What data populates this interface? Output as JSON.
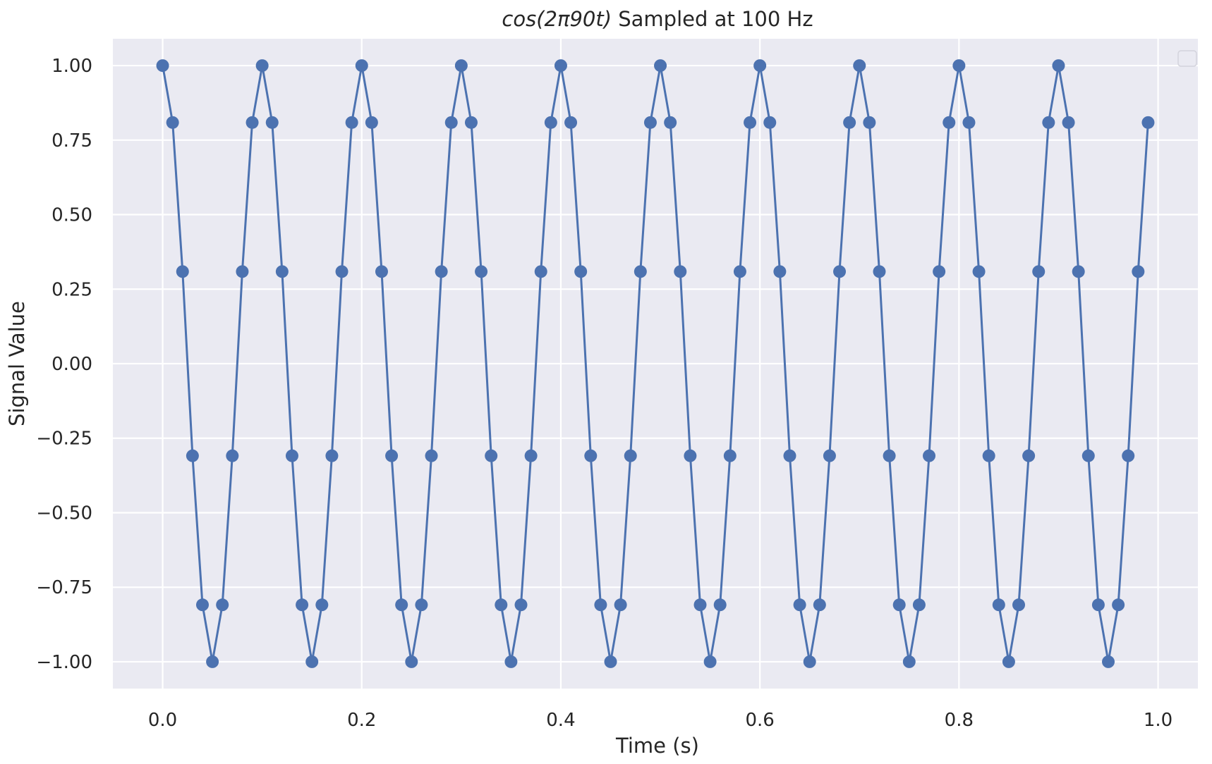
{
  "chart_data": {
    "type": "line",
    "title_prefix": "cos",
    "title_math": "(2π90t)",
    "title_suffix": " Sampled at 100 Hz",
    "xlabel": "Time (s)",
    "ylabel": "Signal Value",
    "xlim": [
      -0.05,
      1.04
    ],
    "ylim": [
      -1.09,
      1.09
    ],
    "xticks": [
      0.0,
      0.2,
      0.4,
      0.6,
      0.8,
      1.0
    ],
    "xtick_labels": [
      "0.0",
      "0.2",
      "0.4",
      "0.6",
      "0.8",
      "1.0"
    ],
    "yticks": [
      1.0,
      0.75,
      0.5,
      0.25,
      0.0,
      -0.25,
      -0.5,
      -0.75,
      -1.0
    ],
    "ytick_labels": [
      "1.00",
      "0.75",
      "0.50",
      "0.25",
      "0.00",
      "−0.25",
      "−0.50",
      "−0.75",
      "−1.00"
    ],
    "grid": true,
    "legend": "top-right (empty)",
    "colors": {
      "series": "#4c72b0",
      "background": "#eaeaf2",
      "grid": "#ffffff"
    },
    "series": [
      {
        "x": [
          0.0,
          0.01,
          0.02,
          0.03,
          0.04,
          0.05,
          0.06,
          0.07,
          0.08,
          0.09,
          0.1,
          0.11,
          0.12,
          0.13,
          0.14,
          0.15,
          0.16,
          0.17,
          0.18,
          0.19,
          0.2,
          0.21,
          0.22,
          0.23,
          0.24,
          0.25,
          0.26,
          0.27,
          0.28,
          0.29,
          0.3,
          0.31,
          0.32,
          0.33,
          0.34,
          0.35,
          0.36,
          0.37,
          0.38,
          0.39,
          0.4,
          0.41,
          0.42,
          0.43,
          0.44,
          0.45,
          0.46,
          0.47,
          0.48,
          0.49,
          0.5,
          0.51,
          0.52,
          0.53,
          0.54,
          0.55,
          0.56,
          0.57,
          0.58,
          0.59,
          0.6,
          0.61,
          0.62,
          0.63,
          0.64,
          0.65,
          0.66,
          0.67,
          0.68,
          0.69,
          0.7,
          0.71,
          0.72,
          0.73,
          0.74,
          0.75,
          0.76,
          0.77,
          0.78,
          0.79,
          0.8,
          0.81,
          0.82,
          0.83,
          0.84,
          0.85,
          0.86,
          0.87,
          0.88,
          0.89,
          0.9,
          0.91,
          0.92,
          0.93,
          0.94,
          0.95,
          0.96,
          0.97,
          0.98,
          0.99
        ],
        "y": [
          1.0,
          0.809,
          0.309,
          -0.309,
          -0.809,
          -1.0,
          -0.809,
          -0.309,
          0.309,
          0.809,
          1.0,
          0.809,
          0.309,
          -0.309,
          -0.809,
          -1.0,
          -0.809,
          -0.309,
          0.309,
          0.809,
          1.0,
          0.809,
          0.309,
          -0.309,
          -0.809,
          -1.0,
          -0.809,
          -0.309,
          0.309,
          0.809,
          1.0,
          0.809,
          0.309,
          -0.309,
          -0.809,
          -1.0,
          -0.809,
          -0.309,
          0.309,
          0.809,
          1.0,
          0.809,
          0.309,
          -0.309,
          -0.809,
          -1.0,
          -0.809,
          -0.309,
          0.309,
          0.809,
          1.0,
          0.809,
          0.309,
          -0.309,
          -0.809,
          -1.0,
          -0.809,
          -0.309,
          0.309,
          0.809,
          1.0,
          0.809,
          0.309,
          -0.309,
          -0.809,
          -1.0,
          -0.809,
          -0.309,
          0.309,
          0.809,
          1.0,
          0.809,
          0.309,
          -0.309,
          -0.809,
          -1.0,
          -0.809,
          -0.309,
          0.309,
          0.809,
          1.0,
          0.809,
          0.309,
          -0.309,
          -0.809,
          -1.0,
          -0.809,
          -0.309,
          0.309,
          0.809,
          1.0,
          0.809,
          0.309,
          -0.309,
          -0.809,
          -1.0,
          -0.809,
          -0.309,
          0.309,
          0.809
        ]
      }
    ]
  }
}
